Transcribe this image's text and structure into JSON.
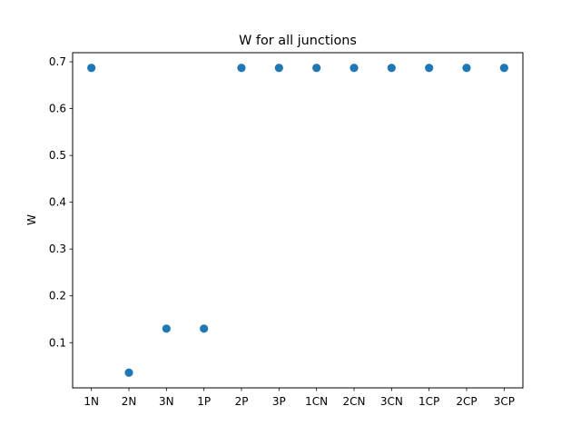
{
  "chart_data": {
    "type": "scatter",
    "title": "W for all junctions",
    "xlabel": "",
    "ylabel": "W",
    "categories": [
      "1N",
      "2N",
      "3N",
      "1P",
      "2P",
      "3P",
      "1CN",
      "2CN",
      "3CN",
      "1CP",
      "2CP",
      "3CP"
    ],
    "values": [
      0.687,
      0.036,
      0.13,
      0.13,
      0.687,
      0.687,
      0.687,
      0.687,
      0.687,
      0.687,
      0.687,
      0.687
    ],
    "ylim": [
      0.0035,
      0.7195
    ],
    "yticks": [
      0.1,
      0.2,
      0.3,
      0.4,
      0.5,
      0.6,
      0.7
    ],
    "ytick_labels": [
      "0.1",
      "0.2",
      "0.3",
      "0.4",
      "0.5",
      "0.6",
      "0.7"
    ],
    "grid": false,
    "color": "#1f77b4"
  }
}
